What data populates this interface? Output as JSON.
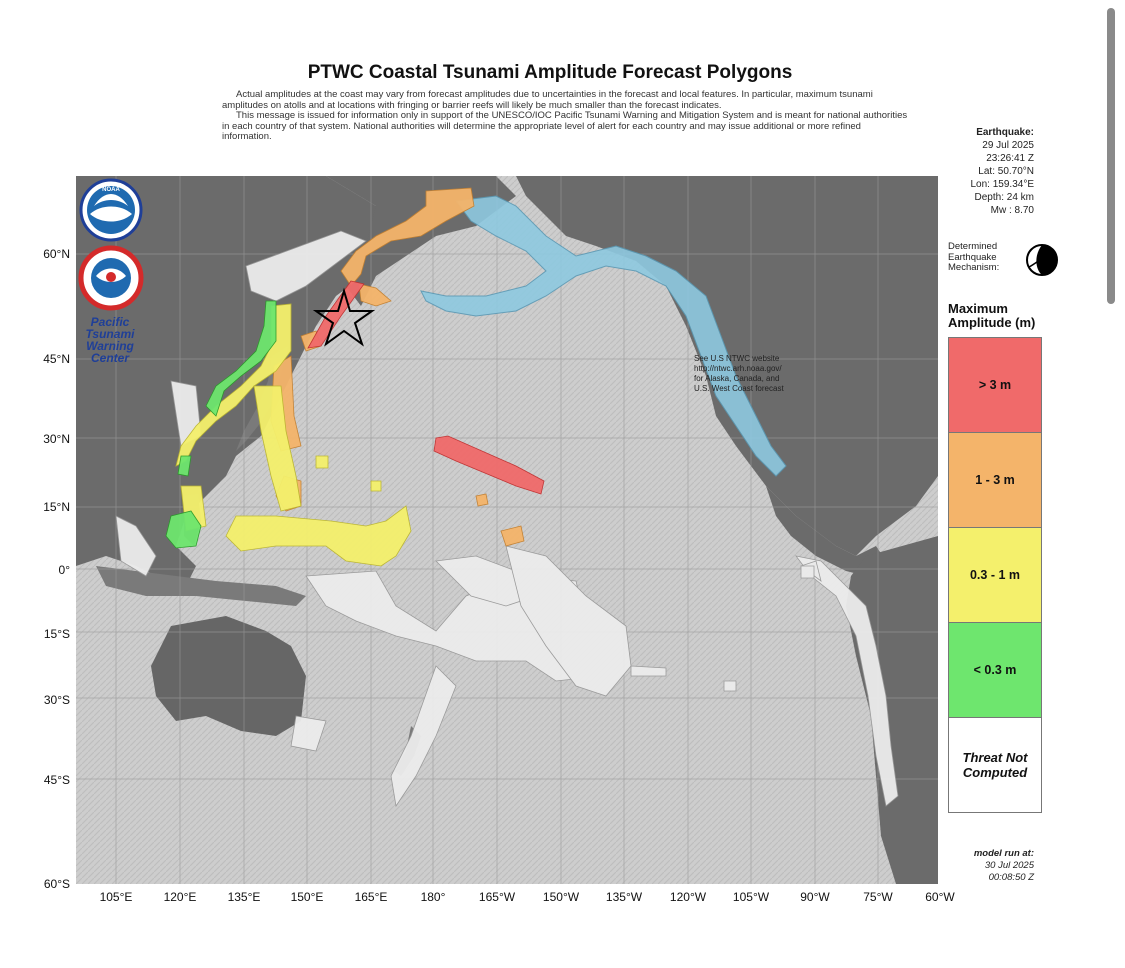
{
  "title": "PTWC Coastal Tsunami Amplitude Forecast Polygons",
  "disclaimer": [
    "Actual amplitudes at the coast may vary from forecast amplitudes due to uncertainties in the forecast and local features. In particular, maximum tsunami amplitudes on atolls and at locations with fringing or barrier reefs will likely be much smaller than the forecast indicates.",
    "This message is issued for information only in support of the UNESCO/IOC Pacific Tsunami Warning and Mitigation System and is meant for national authorities in each country of that system. National authorities will determine the appropriate level of alert for each country and may issue additional or more refined information."
  ],
  "earthquake": {
    "heading": "Earthquake:",
    "date": "29 Jul 2025",
    "time": "23:26:41 Z",
    "lat": "Lat: 50.70°N",
    "lon": "Lon: 159.34°E",
    "depth": "Depth: 24 km",
    "magnitude": "Mw : 8.70"
  },
  "mechanism_label": "Determined Earthquake Mechanism:",
  "legend": {
    "title": "Maximum Amplitude (m)",
    "items": [
      {
        "label": "> 3 m",
        "color": "#f06a6a"
      },
      {
        "label": "1 - 3 m",
        "color": "#f4b46a"
      },
      {
        "label": "0.3 - 1 m",
        "color": "#f4f06c"
      },
      {
        "label": "< 0.3 m",
        "color": "#6ee66e"
      },
      {
        "label": "Threat Not Computed",
        "color": "#ffffff"
      }
    ]
  },
  "model_run": {
    "heading": "model run at:",
    "date": "30 Jul 2025",
    "time": "00:08:50 Z"
  },
  "y_ticks": [
    "60°N",
    "45°N",
    "30°N",
    "15°N",
    "0°",
    "15°S",
    "30°S",
    "45°S",
    "60°S"
  ],
  "x_ticks": [
    "105°E",
    "120°E",
    "135°E",
    "150°E",
    "165°E",
    "180°",
    "165°W",
    "150°W",
    "135°W",
    "120°W",
    "105°W",
    "90°W",
    "75°W",
    "60°W"
  ],
  "logos": {
    "noaa": "NOAA",
    "nws": "NATIONAL WEATHER SERVICE",
    "ptwc": [
      "Pacific",
      "Tsunami",
      "Warning",
      "Center"
    ]
  },
  "ntwc_note": [
    "See U.S NTWC website",
    "http://ntwc.arh.noaa.gov/",
    "for Alaska, Canada, and",
    "U.S. West Coast forecast"
  ],
  "colors": {
    "land": "#6b6b6b",
    "ocean": "#cfcfcf",
    "alaska_zone": "#8ec9e0"
  }
}
